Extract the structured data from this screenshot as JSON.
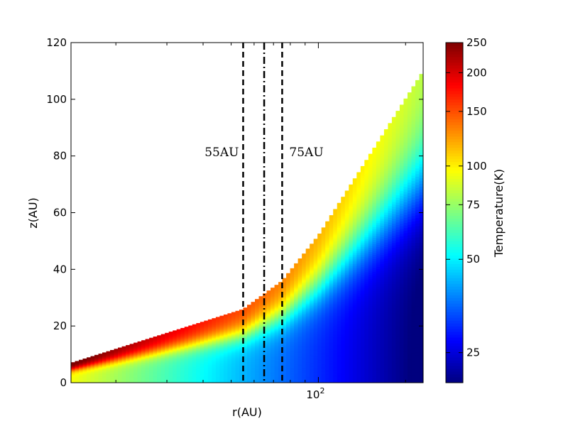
{
  "chart_data": {
    "type": "heatmap",
    "xlabel": "r(AU)",
    "ylabel": "z(AU)",
    "xscale": "log",
    "xlim": [
      14,
      230
    ],
    "ylim": [
      0,
      120
    ],
    "x_ticks": [
      {
        "value": 100,
        "base": "10",
        "exp": "2"
      }
    ],
    "y_ticks": [
      0,
      20,
      40,
      60,
      80,
      100,
      120
    ],
    "colorbar": {
      "label": "Temperature(K)",
      "scale": "log",
      "range": [
        20,
        250
      ],
      "ticks": [
        "25",
        "50",
        "75",
        "100",
        "150",
        "200",
        "250"
      ],
      "tick_values": [
        25,
        50,
        75,
        100,
        150,
        200,
        250
      ],
      "colormap": [
        "#00007f",
        "#0000ff",
        "#007fff",
        "#00ffff",
        "#7fff7f",
        "#ffff00",
        "#ff7f00",
        "#ff0000",
        "#7f0000"
      ]
    },
    "surface": {
      "description": "disk upper boundary z(r)",
      "r": [
        14,
        55,
        75,
        100,
        230
      ],
      "z": [
        7,
        26,
        36,
        52,
        110
      ]
    },
    "annotations": [
      {
        "text": "55AU",
        "x": 55,
        "linestyle": "dashed"
      },
      {
        "text": "75AU",
        "x": 75,
        "linestyle": "dashed"
      },
      {
        "text": "",
        "x": 65,
        "linestyle": "dashdot"
      }
    ]
  }
}
